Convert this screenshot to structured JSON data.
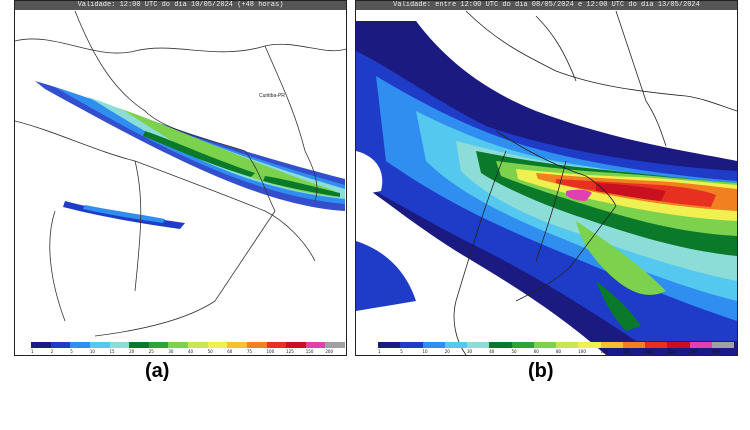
{
  "panel_a": {
    "title": "Validade: 12:00 UTC do dia 10/05/2024 (+48 horas)",
    "city_label": "Curitiba-PR",
    "colorbar_labels": [
      "1",
      "2",
      "5",
      "10",
      "15",
      "20",
      "25",
      "30",
      "40",
      "50",
      "60",
      "75",
      "100",
      "125",
      "150",
      "200"
    ],
    "caption": "(a)"
  },
  "panel_b": {
    "title": "Validade: entre 12:00 UTC do dia 08/05/2024 e 12:00 UTC do dia 13/05/2024",
    "colorbar_labels": [
      "1",
      "5",
      "10",
      "20",
      "30",
      "40",
      "50",
      "60",
      "80",
      "100",
      "120",
      "150",
      "200",
      "250",
      "300",
      "400"
    ],
    "caption": "(b)"
  },
  "colors": {
    "scale": [
      "#1a1a80",
      "#1e3cc8",
      "#2f8ef0",
      "#55c8f0",
      "#8cdcd8",
      "#0a7a2a",
      "#2aa53a",
      "#7cd24c",
      "#c8e650",
      "#f0f050",
      "#f8c030",
      "#f08020",
      "#e83020",
      "#c81020",
      "#e040b0",
      "#a0a0a0"
    ]
  }
}
